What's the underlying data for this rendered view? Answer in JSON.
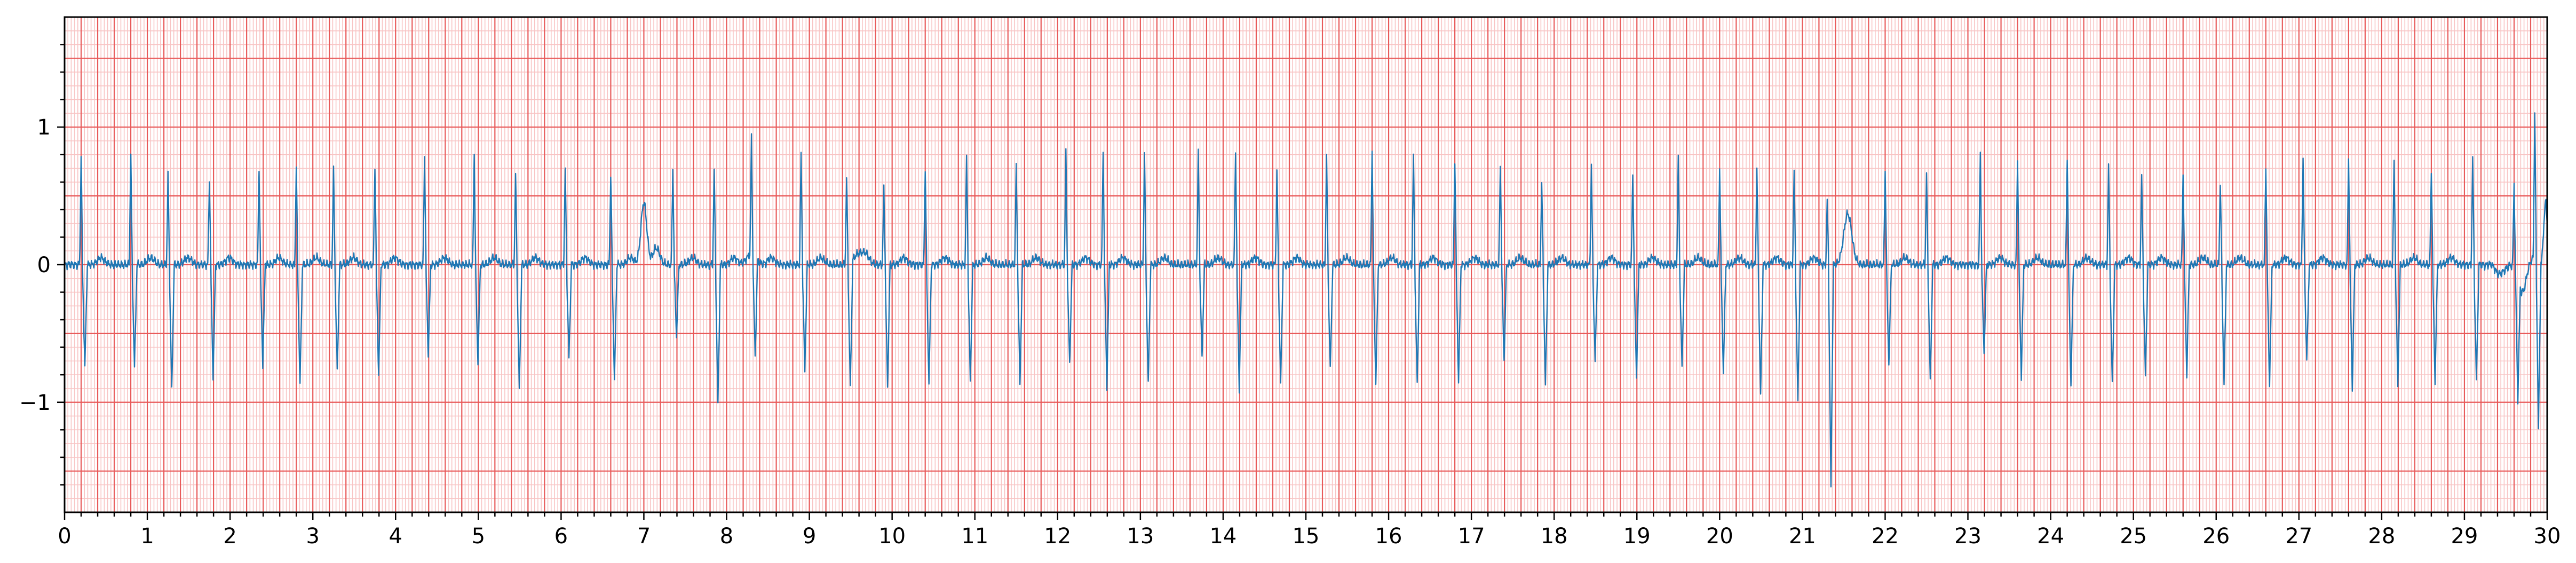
{
  "chart_data": {
    "type": "line",
    "title": "",
    "xlabel": "",
    "ylabel": "",
    "xlim": [
      0,
      30
    ],
    "ylim": [
      -1.8,
      1.8
    ],
    "x_ticks": [
      0,
      1,
      2,
      3,
      4,
      5,
      6,
      7,
      8,
      9,
      10,
      11,
      12,
      13,
      14,
      15,
      16,
      17,
      18,
      19,
      20,
      21,
      22,
      23,
      24,
      25,
      26,
      27,
      28,
      29,
      30
    ],
    "x_tick_labels": [
      "0",
      "1",
      "2",
      "3",
      "4",
      "5",
      "6",
      "7",
      "8",
      "9",
      "10",
      "11",
      "12",
      "13",
      "14",
      "15",
      "16",
      "17",
      "18",
      "19",
      "20",
      "21",
      "22",
      "23",
      "24",
      "25",
      "26",
      "27",
      "28",
      "29",
      "30"
    ],
    "y_ticks": [
      1,
      0,
      -1
    ],
    "y_tick_labels": [
      "1",
      "0",
      "−1"
    ],
    "grid": "ecg paper: major grid every 0.2 s / 0.5 units, minor grid every 0.04 s / 0.1 units",
    "colors": {
      "line": "#1f77b4",
      "major_grid": "#e85a5a",
      "minor_grid": "#f8c4c4",
      "axes": "#000000"
    },
    "series": [
      {
        "beats": [
          [
            0.2,
            0.78,
            -0.75
          ],
          [
            0.8,
            0.82,
            -0.75
          ],
          [
            1.25,
            0.65,
            -0.92
          ],
          [
            1.75,
            0.63,
            -0.82
          ],
          [
            2.35,
            0.7,
            -0.72
          ],
          [
            2.8,
            0.72,
            -0.88
          ],
          [
            3.25,
            0.7,
            -0.78
          ],
          [
            3.75,
            0.72,
            -0.8
          ],
          [
            4.35,
            0.8,
            -0.65
          ],
          [
            4.95,
            0.8,
            -0.72
          ],
          [
            5.45,
            0.65,
            -0.92
          ],
          [
            6.05,
            0.7,
            -0.68
          ],
          [
            6.6,
            0.66,
            -0.85
          ],
          [
            7.35,
            0.7,
            -0.52
          ],
          [
            7.85,
            0.7,
            -1.02
          ],
          [
            8.3,
            0.85,
            -0.73
          ],
          [
            8.9,
            0.81,
            -0.77
          ],
          [
            9.45,
            0.62,
            -0.92
          ],
          [
            9.9,
            0.55,
            -0.9
          ],
          [
            10.4,
            0.69,
            -0.87
          ],
          [
            10.9,
            0.8,
            -0.85
          ],
          [
            11.5,
            0.72,
            -0.87
          ],
          [
            12.1,
            0.82,
            -0.73
          ],
          [
            12.55,
            0.82,
            -0.88
          ],
          [
            13.05,
            0.8,
            -0.88
          ],
          [
            13.7,
            0.82,
            -0.67
          ],
          [
            14.15,
            0.82,
            -0.9
          ],
          [
            14.65,
            0.68,
            -0.87
          ],
          [
            15.25,
            0.8,
            -0.77
          ],
          [
            15.8,
            0.83,
            -0.87
          ],
          [
            16.3,
            0.78,
            -0.87
          ],
          [
            16.8,
            0.77,
            -0.85
          ],
          [
            17.35,
            0.72,
            -0.7
          ],
          [
            17.85,
            0.6,
            -0.88
          ],
          [
            18.45,
            0.72,
            -0.7
          ],
          [
            18.95,
            0.65,
            -0.82
          ],
          [
            19.5,
            0.77,
            -0.75
          ],
          [
            20.0,
            0.7,
            -0.78
          ],
          [
            20.45,
            0.7,
            -0.95
          ],
          [
            20.9,
            0.68,
            -0.99
          ],
          [
            21.3,
            0.45,
            -1.62
          ],
          [
            22.0,
            0.69,
            -0.73
          ],
          [
            22.5,
            0.65,
            -0.85
          ],
          [
            23.15,
            0.8,
            -0.65
          ],
          [
            23.6,
            0.77,
            -0.82
          ],
          [
            24.2,
            0.78,
            -0.88
          ],
          [
            24.7,
            0.72,
            -0.87
          ],
          [
            25.1,
            0.65,
            -0.82
          ],
          [
            25.6,
            0.65,
            -0.8
          ],
          [
            26.05,
            0.6,
            -0.87
          ],
          [
            26.6,
            0.72,
            -0.88
          ],
          [
            27.05,
            0.78,
            -0.7
          ],
          [
            27.6,
            0.78,
            -0.9
          ],
          [
            28.15,
            0.75,
            -0.88
          ],
          [
            28.6,
            0.69,
            -0.85
          ],
          [
            29.1,
            0.78,
            -0.85
          ],
          [
            29.6,
            0.6,
            -0.9
          ],
          [
            29.85,
            1.08,
            -1.2
          ]
        ]
      }
    ]
  }
}
